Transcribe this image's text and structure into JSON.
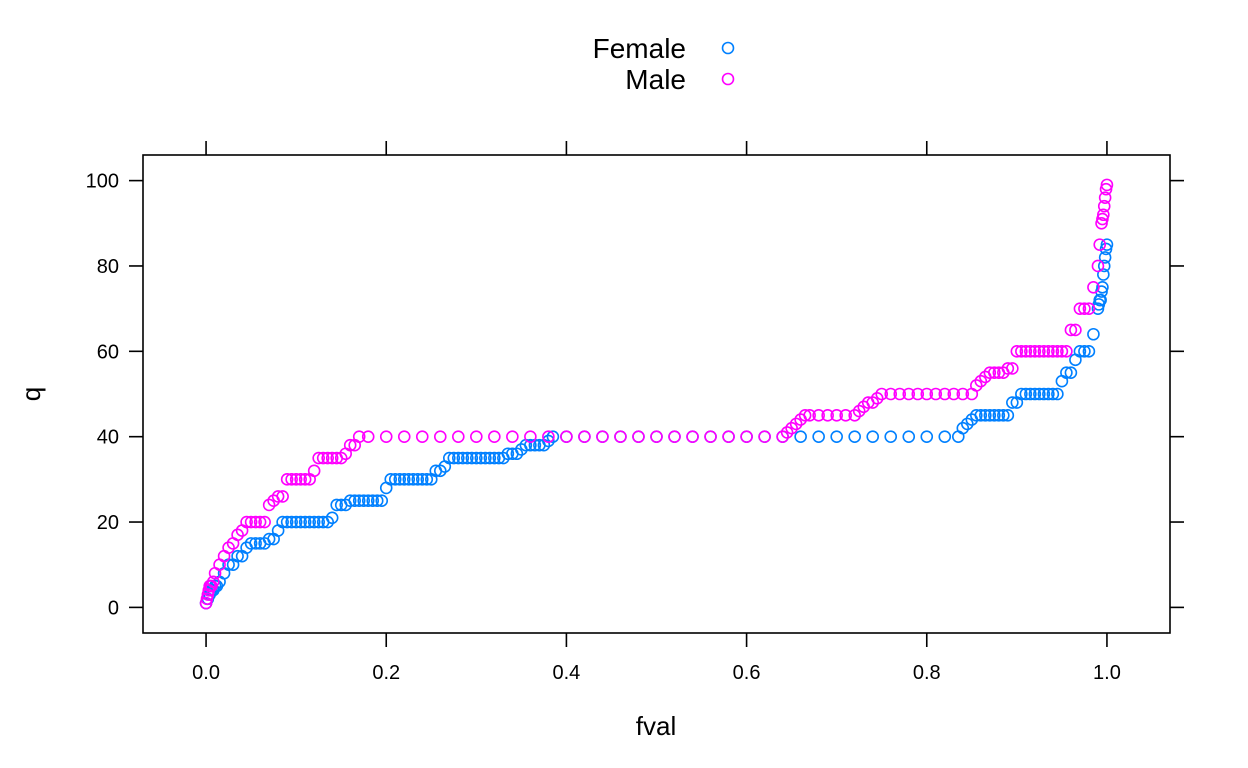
{
  "chart_data": {
    "type": "scatter",
    "xlabel": "fval",
    "ylabel": "q",
    "xlim": [
      -0.07,
      1.07
    ],
    "ylim": [
      -6,
      106
    ],
    "xticks": [
      "0.0",
      "0.2",
      "0.4",
      "0.6",
      "0.8",
      "1.0"
    ],
    "yticks": [
      "0",
      "20",
      "40",
      "60",
      "80",
      "100"
    ],
    "legend_position": "top-center",
    "grid": false,
    "marker": "open-circle",
    "series": [
      {
        "name": "Female",
        "color": "#0080ff",
        "points": [
          [
            0.0,
            1
          ],
          [
            0.002,
            2
          ],
          [
            0.004,
            3
          ],
          [
            0.006,
            4
          ],
          [
            0.008,
            4
          ],
          [
            0.01,
            5
          ],
          [
            0.012,
            5
          ],
          [
            0.015,
            6
          ],
          [
            0.02,
            8
          ],
          [
            0.025,
            10
          ],
          [
            0.03,
            10
          ],
          [
            0.035,
            12
          ],
          [
            0.04,
            12
          ],
          [
            0.045,
            14
          ],
          [
            0.05,
            15
          ],
          [
            0.055,
            15
          ],
          [
            0.06,
            15
          ],
          [
            0.065,
            15
          ],
          [
            0.07,
            16
          ],
          [
            0.075,
            16
          ],
          [
            0.08,
            18
          ],
          [
            0.085,
            20
          ],
          [
            0.09,
            20
          ],
          [
            0.095,
            20
          ],
          [
            0.1,
            20
          ],
          [
            0.105,
            20
          ],
          [
            0.11,
            20
          ],
          [
            0.115,
            20
          ],
          [
            0.12,
            20
          ],
          [
            0.125,
            20
          ],
          [
            0.13,
            20
          ],
          [
            0.135,
            20
          ],
          [
            0.14,
            21
          ],
          [
            0.145,
            24
          ],
          [
            0.15,
            24
          ],
          [
            0.155,
            24
          ],
          [
            0.16,
            25
          ],
          [
            0.165,
            25
          ],
          [
            0.17,
            25
          ],
          [
            0.175,
            25
          ],
          [
            0.18,
            25
          ],
          [
            0.185,
            25
          ],
          [
            0.19,
            25
          ],
          [
            0.195,
            25
          ],
          [
            0.2,
            28
          ],
          [
            0.205,
            30
          ],
          [
            0.21,
            30
          ],
          [
            0.215,
            30
          ],
          [
            0.22,
            30
          ],
          [
            0.225,
            30
          ],
          [
            0.23,
            30
          ],
          [
            0.235,
            30
          ],
          [
            0.24,
            30
          ],
          [
            0.245,
            30
          ],
          [
            0.25,
            30
          ],
          [
            0.255,
            32
          ],
          [
            0.26,
            32
          ],
          [
            0.265,
            33
          ],
          [
            0.27,
            35
          ],
          [
            0.275,
            35
          ],
          [
            0.28,
            35
          ],
          [
            0.285,
            35
          ],
          [
            0.29,
            35
          ],
          [
            0.295,
            35
          ],
          [
            0.3,
            35
          ],
          [
            0.305,
            35
          ],
          [
            0.31,
            35
          ],
          [
            0.315,
            35
          ],
          [
            0.32,
            35
          ],
          [
            0.325,
            35
          ],
          [
            0.33,
            35
          ],
          [
            0.335,
            36
          ],
          [
            0.34,
            36
          ],
          [
            0.345,
            36
          ],
          [
            0.35,
            37
          ],
          [
            0.355,
            38
          ],
          [
            0.36,
            38
          ],
          [
            0.365,
            38
          ],
          [
            0.37,
            38
          ],
          [
            0.375,
            38
          ],
          [
            0.38,
            39
          ],
          [
            0.385,
            40
          ],
          [
            0.4,
            40
          ],
          [
            0.42,
            40
          ],
          [
            0.44,
            40
          ],
          [
            0.46,
            40
          ],
          [
            0.48,
            40
          ],
          [
            0.5,
            40
          ],
          [
            0.52,
            40
          ],
          [
            0.54,
            40
          ],
          [
            0.56,
            40
          ],
          [
            0.58,
            40
          ],
          [
            0.6,
            40
          ],
          [
            0.62,
            40
          ],
          [
            0.64,
            40
          ],
          [
            0.66,
            40
          ],
          [
            0.68,
            40
          ],
          [
            0.7,
            40
          ],
          [
            0.72,
            40
          ],
          [
            0.74,
            40
          ],
          [
            0.76,
            40
          ],
          [
            0.78,
            40
          ],
          [
            0.8,
            40
          ],
          [
            0.82,
            40
          ],
          [
            0.835,
            40
          ],
          [
            0.84,
            42
          ],
          [
            0.845,
            43
          ],
          [
            0.85,
            44
          ],
          [
            0.855,
            45
          ],
          [
            0.86,
            45
          ],
          [
            0.865,
            45
          ],
          [
            0.87,
            45
          ],
          [
            0.875,
            45
          ],
          [
            0.88,
            45
          ],
          [
            0.885,
            45
          ],
          [
            0.89,
            45
          ],
          [
            0.895,
            48
          ],
          [
            0.9,
            48
          ],
          [
            0.905,
            50
          ],
          [
            0.91,
            50
          ],
          [
            0.915,
            50
          ],
          [
            0.92,
            50
          ],
          [
            0.925,
            50
          ],
          [
            0.93,
            50
          ],
          [
            0.935,
            50
          ],
          [
            0.94,
            50
          ],
          [
            0.945,
            50
          ],
          [
            0.95,
            53
          ],
          [
            0.955,
            55
          ],
          [
            0.96,
            55
          ],
          [
            0.965,
            58
          ],
          [
            0.97,
            60
          ],
          [
            0.975,
            60
          ],
          [
            0.98,
            60
          ],
          [
            0.985,
            64
          ],
          [
            0.99,
            70
          ],
          [
            0.991,
            71
          ],
          [
            0.992,
            72
          ],
          [
            0.993,
            72
          ],
          [
            0.994,
            74
          ],
          [
            0.995,
            75
          ],
          [
            0.996,
            78
          ],
          [
            0.997,
            80
          ],
          [
            0.998,
            82
          ],
          [
            0.999,
            84
          ],
          [
            1.0,
            85
          ]
        ]
      },
      {
        "name": "Male",
        "color": "#ff00ff",
        "points": [
          [
            0.0,
            1
          ],
          [
            0.001,
            2
          ],
          [
            0.002,
            3
          ],
          [
            0.003,
            4
          ],
          [
            0.004,
            5
          ],
          [
            0.005,
            5
          ],
          [
            0.006,
            5
          ],
          [
            0.008,
            6
          ],
          [
            0.01,
            8
          ],
          [
            0.015,
            10
          ],
          [
            0.02,
            12
          ],
          [
            0.025,
            14
          ],
          [
            0.03,
            15
          ],
          [
            0.035,
            17
          ],
          [
            0.04,
            18
          ],
          [
            0.045,
            20
          ],
          [
            0.05,
            20
          ],
          [
            0.055,
            20
          ],
          [
            0.06,
            20
          ],
          [
            0.065,
            20
          ],
          [
            0.07,
            24
          ],
          [
            0.075,
            25
          ],
          [
            0.08,
            26
          ],
          [
            0.085,
            26
          ],
          [
            0.09,
            30
          ],
          [
            0.095,
            30
          ],
          [
            0.1,
            30
          ],
          [
            0.105,
            30
          ],
          [
            0.11,
            30
          ],
          [
            0.115,
            30
          ],
          [
            0.12,
            32
          ],
          [
            0.125,
            35
          ],
          [
            0.13,
            35
          ],
          [
            0.135,
            35
          ],
          [
            0.14,
            35
          ],
          [
            0.145,
            35
          ],
          [
            0.15,
            35
          ],
          [
            0.155,
            36
          ],
          [
            0.16,
            38
          ],
          [
            0.165,
            38
          ],
          [
            0.17,
            40
          ],
          [
            0.18,
            40
          ],
          [
            0.2,
            40
          ],
          [
            0.22,
            40
          ],
          [
            0.24,
            40
          ],
          [
            0.26,
            40
          ],
          [
            0.28,
            40
          ],
          [
            0.3,
            40
          ],
          [
            0.32,
            40
          ],
          [
            0.34,
            40
          ],
          [
            0.36,
            40
          ],
          [
            0.38,
            40
          ],
          [
            0.4,
            40
          ],
          [
            0.42,
            40
          ],
          [
            0.44,
            40
          ],
          [
            0.46,
            40
          ],
          [
            0.48,
            40
          ],
          [
            0.5,
            40
          ],
          [
            0.52,
            40
          ],
          [
            0.54,
            40
          ],
          [
            0.56,
            40
          ],
          [
            0.58,
            40
          ],
          [
            0.6,
            40
          ],
          [
            0.62,
            40
          ],
          [
            0.64,
            40
          ],
          [
            0.645,
            41
          ],
          [
            0.65,
            42
          ],
          [
            0.655,
            43
          ],
          [
            0.66,
            44
          ],
          [
            0.665,
            45
          ],
          [
            0.67,
            45
          ],
          [
            0.68,
            45
          ],
          [
            0.69,
            45
          ],
          [
            0.7,
            45
          ],
          [
            0.71,
            45
          ],
          [
            0.72,
            45
          ],
          [
            0.725,
            46
          ],
          [
            0.73,
            47
          ],
          [
            0.735,
            48
          ],
          [
            0.74,
            48
          ],
          [
            0.745,
            49
          ],
          [
            0.75,
            50
          ],
          [
            0.76,
            50
          ],
          [
            0.77,
            50
          ],
          [
            0.78,
            50
          ],
          [
            0.79,
            50
          ],
          [
            0.8,
            50
          ],
          [
            0.81,
            50
          ],
          [
            0.82,
            50
          ],
          [
            0.83,
            50
          ],
          [
            0.84,
            50
          ],
          [
            0.85,
            50
          ],
          [
            0.855,
            52
          ],
          [
            0.86,
            53
          ],
          [
            0.865,
            54
          ],
          [
            0.87,
            55
          ],
          [
            0.875,
            55
          ],
          [
            0.88,
            55
          ],
          [
            0.885,
            55
          ],
          [
            0.89,
            56
          ],
          [
            0.895,
            56
          ],
          [
            0.9,
            60
          ],
          [
            0.905,
            60
          ],
          [
            0.91,
            60
          ],
          [
            0.915,
            60
          ],
          [
            0.92,
            60
          ],
          [
            0.925,
            60
          ],
          [
            0.93,
            60
          ],
          [
            0.935,
            60
          ],
          [
            0.94,
            60
          ],
          [
            0.945,
            60
          ],
          [
            0.95,
            60
          ],
          [
            0.955,
            60
          ],
          [
            0.96,
            65
          ],
          [
            0.965,
            65
          ],
          [
            0.97,
            70
          ],
          [
            0.975,
            70
          ],
          [
            0.98,
            70
          ],
          [
            0.985,
            75
          ],
          [
            0.99,
            80
          ],
          [
            0.992,
            85
          ],
          [
            0.994,
            90
          ],
          [
            0.995,
            91
          ],
          [
            0.996,
            92
          ],
          [
            0.997,
            94
          ],
          [
            0.998,
            96
          ],
          [
            0.999,
            98
          ],
          [
            1.0,
            99
          ]
        ]
      }
    ]
  }
}
